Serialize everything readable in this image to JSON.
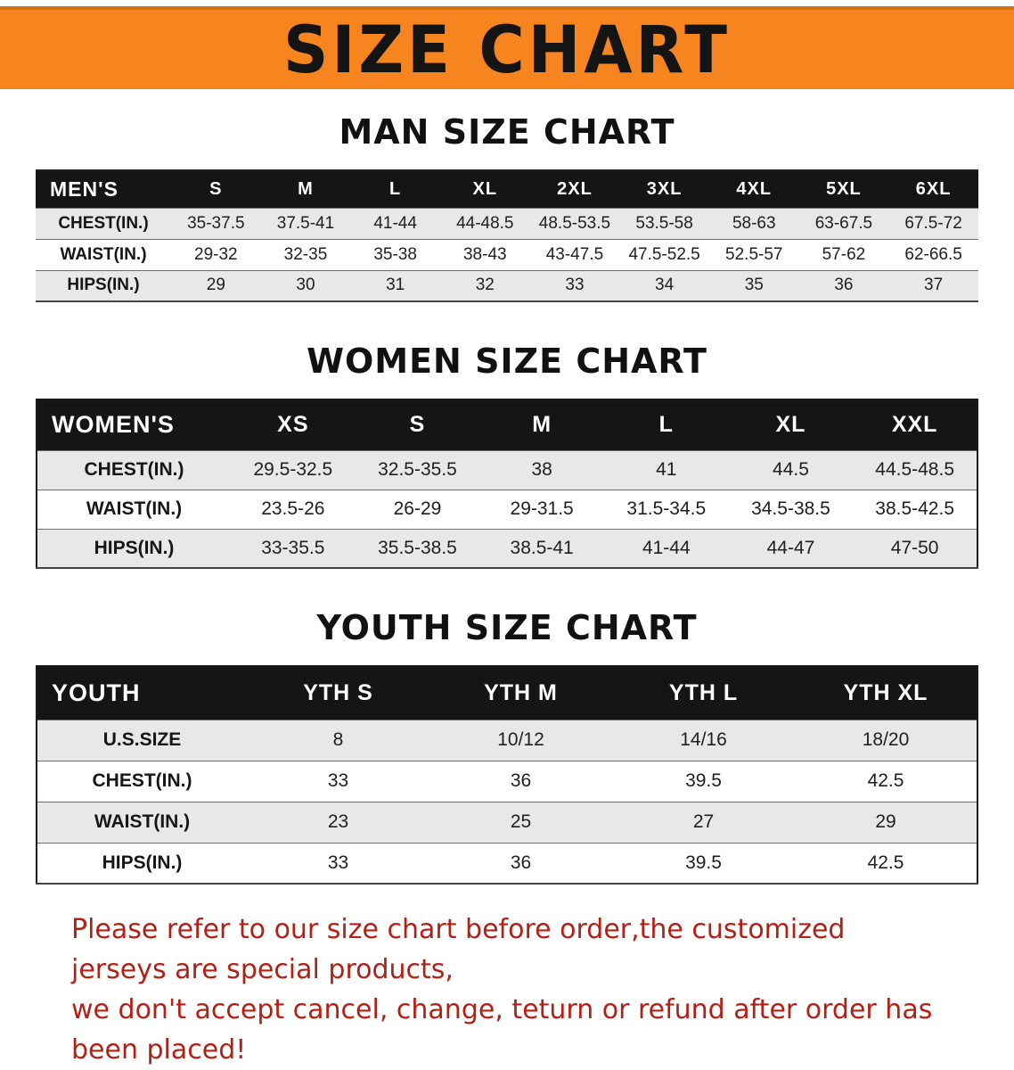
{
  "banner": {
    "title": "SIZE CHART",
    "bg_color": "#f6851f",
    "text_color": "#141414"
  },
  "sections": [
    {
      "heading": "MAN SIZE CHART",
      "table": {
        "header_label": "MEN'S",
        "columns": [
          "S",
          "M",
          "L",
          "XL",
          "2XL",
          "3XL",
          "4XL",
          "5XL",
          "6XL"
        ],
        "rows": [
          {
            "label": "CHEST(IN.)",
            "values": [
              "35-37.5",
              "37.5-41",
              "41-44",
              "44-48.5",
              "48.5-53.5",
              "53.5-58",
              "58-63",
              "63-67.5",
              "67.5-72"
            ]
          },
          {
            "label": "WAIST(IN.)",
            "values": [
              "29-32",
              "32-35",
              "35-38",
              "38-43",
              "43-47.5",
              "47.5-52.5",
              "52.5-57",
              "57-62",
              "62-66.5"
            ]
          },
          {
            "label": "HIPS(IN.)",
            "values": [
              "29",
              "30",
              "31",
              "32",
              "33",
              "34",
              "35",
              "36",
              "37"
            ]
          }
        ]
      }
    },
    {
      "heading": "WOMEN SIZE CHART",
      "table": {
        "header_label": "WOMEN'S",
        "columns": [
          "XS",
          "S",
          "M",
          "L",
          "XL",
          "XXL"
        ],
        "rows": [
          {
            "label": "CHEST(IN.)",
            "values": [
              "29.5-32.5",
              "32.5-35.5",
              "38",
              "41",
              "44.5",
              "44.5-48.5"
            ]
          },
          {
            "label": "WAIST(IN.)",
            "values": [
              "23.5-26",
              "26-29",
              "29-31.5",
              "31.5-34.5",
              "34.5-38.5",
              "38.5-42.5"
            ]
          },
          {
            "label": "HIPS(IN.)",
            "values": [
              "33-35.5",
              "35.5-38.5",
              "38.5-41",
              "41-44",
              "44-47",
              "47-50"
            ]
          }
        ]
      }
    },
    {
      "heading": "YOUTH SIZE CHART",
      "table": {
        "header_label": "YOUTH",
        "columns": [
          "YTH S",
          "YTH M",
          "YTH L",
          "YTH XL"
        ],
        "rows": [
          {
            "label": "U.S.SIZE",
            "values": [
              "8",
              "10/12",
              "14/16",
              "18/20"
            ]
          },
          {
            "label": "CHEST(IN.)",
            "values": [
              "33",
              "36",
              "39.5",
              "42.5"
            ]
          },
          {
            "label": "WAIST(IN.)",
            "values": [
              "23",
              "25",
              "27",
              "29"
            ]
          },
          {
            "label": "HIPS(IN.)",
            "values": [
              "33",
              "36",
              "39.5",
              "42.5"
            ]
          }
        ]
      }
    }
  ],
  "footer": {
    "line1": "Please refer to our size chart before order,the customized jerseys are special products,",
    "line2": "we don't accept cancel, change, teturn or refund after order has been placed!",
    "text_color": "#b32016"
  }
}
